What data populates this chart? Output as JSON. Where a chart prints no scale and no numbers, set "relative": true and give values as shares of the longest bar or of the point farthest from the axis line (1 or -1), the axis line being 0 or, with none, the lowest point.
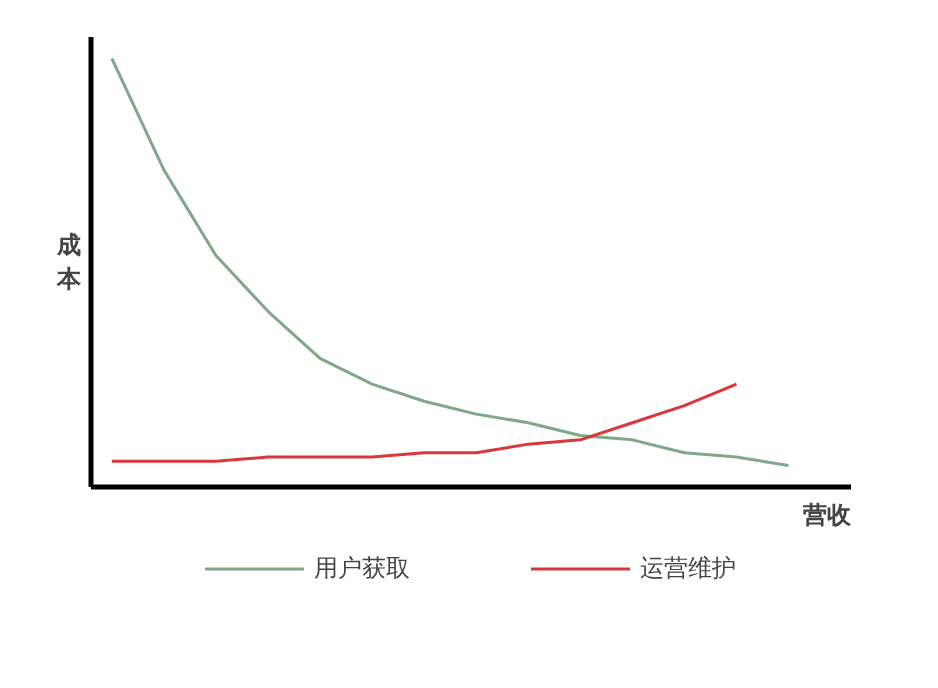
{
  "chart_data": {
    "type": "line",
    "relative": true,
    "xlabel": "营收",
    "ylabel": "成本",
    "categories": [
      null,
      null,
      null,
      null,
      null,
      null,
      null,
      null,
      null,
      null,
      null,
      null,
      null,
      null
    ],
    "series": [
      {
        "name": "用户获取",
        "color": "#7fa88a",
        "values": [
          1,
          0.74,
          0.54,
          0.41,
          0.3,
          0.24,
          0.2,
          0.17,
          0.15,
          0.12,
          0.11,
          0.08,
          0.07,
          0.05
        ]
      },
      {
        "name": "运营维护",
        "color": "#d9383a",
        "values": [
          0.06,
          0.06,
          0.06,
          0.07,
          0.07,
          0.07,
          0.08,
          0.08,
          0.1,
          0.11,
          0.15,
          0.19,
          0.24,
          null
        ]
      }
    ],
    "legend": "bottom",
    "marker": "none",
    "line_style": "solid"
  }
}
